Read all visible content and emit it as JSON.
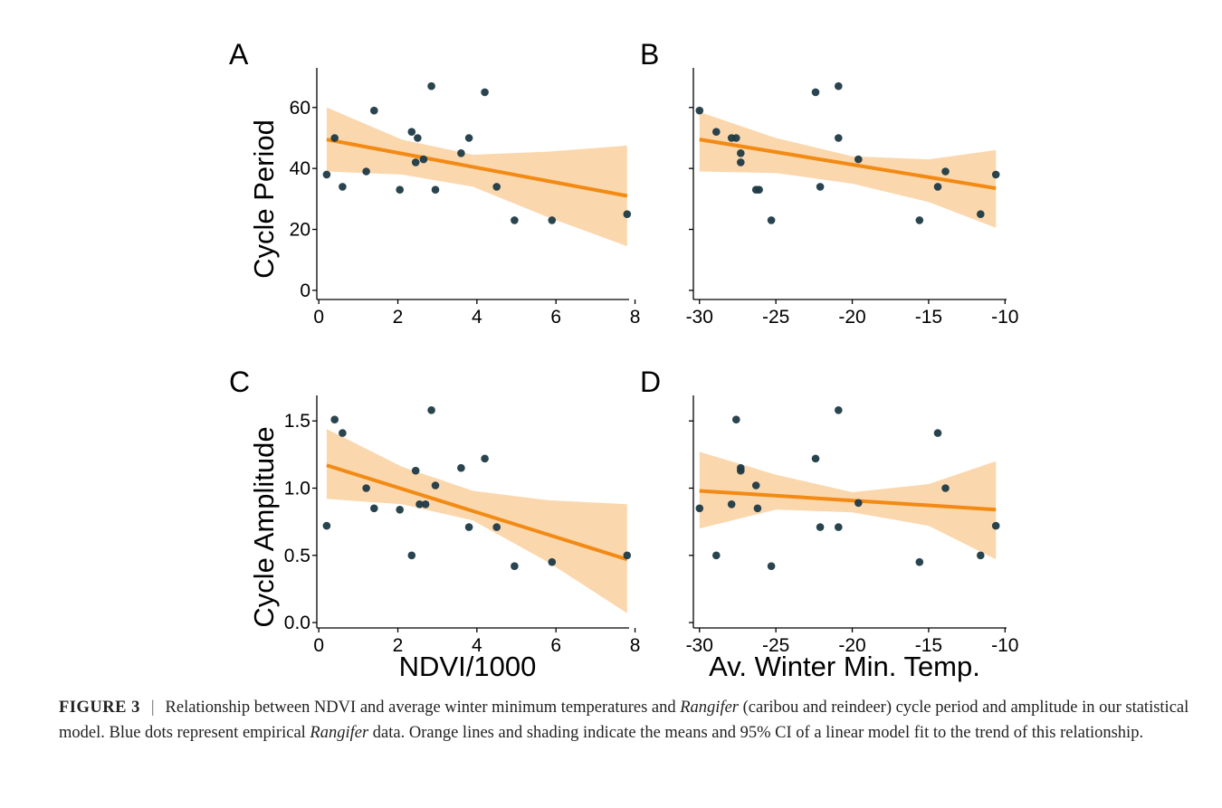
{
  "figure": {
    "caption": {
      "label": "FIGURE 3",
      "separator": "|",
      "parts": [
        {
          "text": "Relationship between NDVI and average winter minimum temperatures and ",
          "italic": false
        },
        {
          "text": "Rangifer",
          "italic": true
        },
        {
          "text": " (caribou and reindeer) cycle period and amplitude in our statistical model. Blue dots represent empirical ",
          "italic": false
        },
        {
          "text": "Rangifer",
          "italic": true
        },
        {
          "text": " data. Orange lines and shading indicate the means and 95% CI of a linear model fit to the trend of this relationship.",
          "italic": false
        }
      ]
    },
    "colors": {
      "points": "#1e3a46",
      "fit_line": "#f28a14",
      "ci_band": "#fbd7ad"
    }
  },
  "chart_data": [
    {
      "panel": "A",
      "type": "scatter",
      "xlabel": "",
      "ylabel": "Cycle Period",
      "xlim": [
        -0.05,
        7.85
      ],
      "ylim": [
        -3,
        73
      ],
      "xticks": [
        {
          "v": 0,
          "label": "0"
        },
        {
          "v": 2,
          "label": "2"
        },
        {
          "v": 4,
          "label": "4"
        },
        {
          "v": 6,
          "label": "6"
        },
        {
          "v": 8,
          "label": "8"
        }
      ],
      "yticks": [
        {
          "v": 0,
          "label": "0"
        },
        {
          "v": 20,
          "label": "20"
        },
        {
          "v": 40,
          "label": "40"
        },
        {
          "v": 60,
          "label": "60"
        }
      ],
      "points": [
        [
          0.2,
          38
        ],
        [
          0.4,
          50
        ],
        [
          0.6,
          34
        ],
        [
          1.2,
          39
        ],
        [
          1.4,
          59
        ],
        [
          2.05,
          33
        ],
        [
          2.35,
          52
        ],
        [
          2.45,
          42
        ],
        [
          2.5,
          50
        ],
        [
          2.65,
          43
        ],
        [
          2.85,
          67
        ],
        [
          2.95,
          33
        ],
        [
          3.6,
          45
        ],
        [
          3.8,
          50
        ],
        [
          4.2,
          65
        ],
        [
          4.5,
          34
        ],
        [
          4.95,
          23
        ],
        [
          5.9,
          23
        ],
        [
          7.8,
          25
        ]
      ],
      "fit": {
        "x": [
          0.2,
          7.8
        ],
        "y": [
          49.5,
          31
        ]
      },
      "ci": {
        "x": [
          0.2,
          2.1,
          3.9,
          5.8,
          7.8
        ],
        "lower": [
          39,
          38,
          34,
          24,
          14.5
        ],
        "upper": [
          60,
          49.5,
          44.5,
          45.5,
          47.5
        ]
      }
    },
    {
      "panel": "B",
      "type": "scatter",
      "xlabel": "",
      "ylabel": "",
      "xlim": [
        -30.4,
        -9.9
      ],
      "ylim": [
        -3,
        73
      ],
      "xticks": [
        {
          "v": -30,
          "label": "-30"
        },
        {
          "v": -25,
          "label": "-25"
        },
        {
          "v": -20,
          "label": "-20"
        },
        {
          "v": -15,
          "label": "-15"
        },
        {
          "v": -10,
          "label": "-10"
        }
      ],
      "yticks": [
        {
          "v": 0,
          "label": ""
        },
        {
          "v": 20,
          "label": ""
        },
        {
          "v": 40,
          "label": ""
        },
        {
          "v": 60,
          "label": ""
        }
      ],
      "points": [
        [
          -30,
          59
        ],
        [
          -28.9,
          52
        ],
        [
          -27.9,
          50
        ],
        [
          -27.6,
          50
        ],
        [
          -27.3,
          45
        ],
        [
          -27.3,
          42
        ],
        [
          -26.3,
          33
        ],
        [
          -26.1,
          33
        ],
        [
          -25.3,
          23
        ],
        [
          -22.4,
          65
        ],
        [
          -22.1,
          34
        ],
        [
          -20.9,
          67
        ],
        [
          -20.9,
          50
        ],
        [
          -19.6,
          43
        ],
        [
          -15.6,
          23
        ],
        [
          -14.4,
          34
        ],
        [
          -13.9,
          39
        ],
        [
          -11.6,
          25
        ],
        [
          -10.6,
          38
        ]
      ],
      "fit": {
        "x": [
          -30,
          -10.6
        ],
        "y": [
          49.5,
          33.5
        ]
      },
      "ci": {
        "x": [
          -30,
          -25,
          -20,
          -15,
          -10.6
        ],
        "lower": [
          39,
          38.5,
          35,
          29,
          20.5
        ],
        "upper": [
          58.5,
          50,
          44,
          43,
          46
        ]
      }
    },
    {
      "panel": "C",
      "type": "scatter",
      "xlabel": "NDVI/1000",
      "ylabel": "Cycle Amplitude",
      "xlim": [
        -0.05,
        7.85
      ],
      "ylim": [
        -0.04,
        1.69
      ],
      "xticks": [
        {
          "v": 0,
          "label": "0"
        },
        {
          "v": 2,
          "label": "2"
        },
        {
          "v": 4,
          "label": "4"
        },
        {
          "v": 6,
          "label": "6"
        },
        {
          "v": 8,
          "label": "8"
        }
      ],
      "yticks": [
        {
          "v": 0,
          "label": "0.0"
        },
        {
          "v": 0.5,
          "label": "0.5"
        },
        {
          "v": 1,
          "label": "1.0"
        },
        {
          "v": 1.5,
          "label": "1.5"
        }
      ],
      "points": [
        [
          0.2,
          0.72
        ],
        [
          0.4,
          1.51
        ],
        [
          0.6,
          1.41
        ],
        [
          1.2,
          1.0
        ],
        [
          1.4,
          0.85
        ],
        [
          2.05,
          0.84
        ],
        [
          2.35,
          0.5
        ],
        [
          2.45,
          1.13
        ],
        [
          2.55,
          0.88
        ],
        [
          2.7,
          0.88
        ],
        [
          2.85,
          1.58
        ],
        [
          2.95,
          1.02
        ],
        [
          3.6,
          1.15
        ],
        [
          3.8,
          0.71
        ],
        [
          4.2,
          1.22
        ],
        [
          4.5,
          0.71
        ],
        [
          4.95,
          0.42
        ],
        [
          5.9,
          0.45
        ],
        [
          7.8,
          0.5
        ]
      ],
      "fit": {
        "x": [
          0.2,
          7.8
        ],
        "y": [
          1.17,
          0.47
        ]
      },
      "ci": {
        "x": [
          0.2,
          2.1,
          3.9,
          5.8,
          7.8
        ],
        "lower": [
          0.92,
          0.88,
          0.76,
          0.45,
          0.07
        ],
        "upper": [
          1.44,
          1.16,
          0.98,
          0.91,
          0.88
        ]
      }
    },
    {
      "panel": "D",
      "type": "scatter",
      "xlabel": "Av. Winter Min. Temp.",
      "ylabel": "",
      "xlim": [
        -30.4,
        -9.9
      ],
      "ylim": [
        -0.04,
        1.69
      ],
      "xticks": [
        {
          "v": -30,
          "label": "-30"
        },
        {
          "v": -25,
          "label": "-25"
        },
        {
          "v": -20,
          "label": "-20"
        },
        {
          "v": -15,
          "label": "-15"
        },
        {
          "v": -10,
          "label": "-10"
        }
      ],
      "yticks": [
        {
          "v": 0,
          "label": ""
        },
        {
          "v": 0.5,
          "label": ""
        },
        {
          "v": 1,
          "label": ""
        },
        {
          "v": 1.5,
          "label": ""
        }
      ],
      "points": [
        [
          -30,
          0.85
        ],
        [
          -28.9,
          0.5
        ],
        [
          -27.9,
          0.88
        ],
        [
          -27.6,
          1.51
        ],
        [
          -27.3,
          1.13
        ],
        [
          -27.3,
          1.15
        ],
        [
          -26.3,
          1.02
        ],
        [
          -26.2,
          0.85
        ],
        [
          -25.3,
          0.42
        ],
        [
          -22.4,
          1.22
        ],
        [
          -22.1,
          0.71
        ],
        [
          -20.9,
          1.58
        ],
        [
          -20.9,
          0.71
        ],
        [
          -19.6,
          0.89
        ],
        [
          -15.6,
          0.45
        ],
        [
          -14.4,
          1.41
        ],
        [
          -13.9,
          1.0
        ],
        [
          -11.6,
          0.5
        ],
        [
          -10.6,
          0.72
        ]
      ],
      "fit": {
        "x": [
          -30,
          -10.6
        ],
        "y": [
          0.98,
          0.84
        ]
      },
      "ci": {
        "x": [
          -30,
          -25,
          -20,
          -15,
          -10.6
        ],
        "lower": [
          0.7,
          0.84,
          0.82,
          0.72,
          0.47
        ],
        "upper": [
          1.27,
          1.1,
          0.97,
          1.03,
          1.2
        ]
      }
    }
  ]
}
